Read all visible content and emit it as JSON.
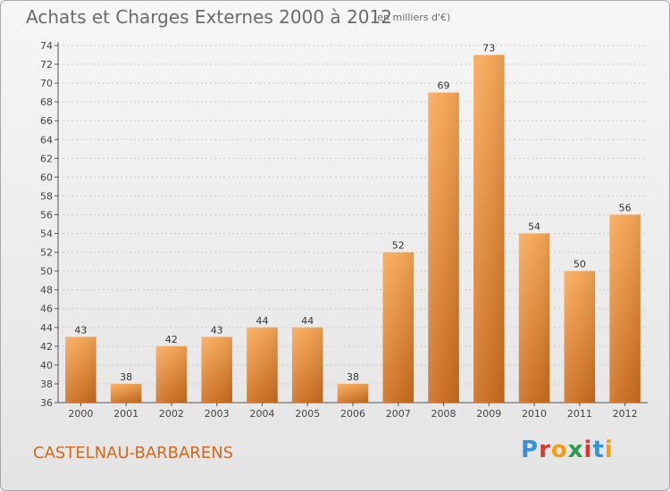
{
  "header": {
    "title": "Achats et Charges Externes 2000 à 2012",
    "subtitle": "(en milliers d'€)"
  },
  "footer": {
    "commune": "CASTELNAU-BARBARENS",
    "logo": "Proxiti"
  },
  "colors": {
    "bar_top": "#f6a655",
    "bar_bottom": "#c96a1c",
    "grid": "#cccccc",
    "commune_text": "#d2691e"
  },
  "chart_data": {
    "type": "bar",
    "title": "Achats et Charges Externes 2000 à 2012",
    "subtitle": "(en milliers d'€)",
    "categories": [
      "2000",
      "2001",
      "2002",
      "2003",
      "2004",
      "2005",
      "2006",
      "2007",
      "2008",
      "2009",
      "2010",
      "2011",
      "2012"
    ],
    "values": [
      43,
      38,
      42,
      43,
      44,
      44,
      38,
      52,
      69,
      73,
      54,
      50,
      56
    ],
    "ylim": [
      36,
      74
    ],
    "yticks": [
      36,
      38,
      40,
      42,
      44,
      46,
      48,
      50,
      52,
      54,
      56,
      58,
      60,
      62,
      64,
      66,
      68,
      70,
      72,
      74
    ],
    "grid": true,
    "xlabel": "",
    "ylabel": ""
  }
}
